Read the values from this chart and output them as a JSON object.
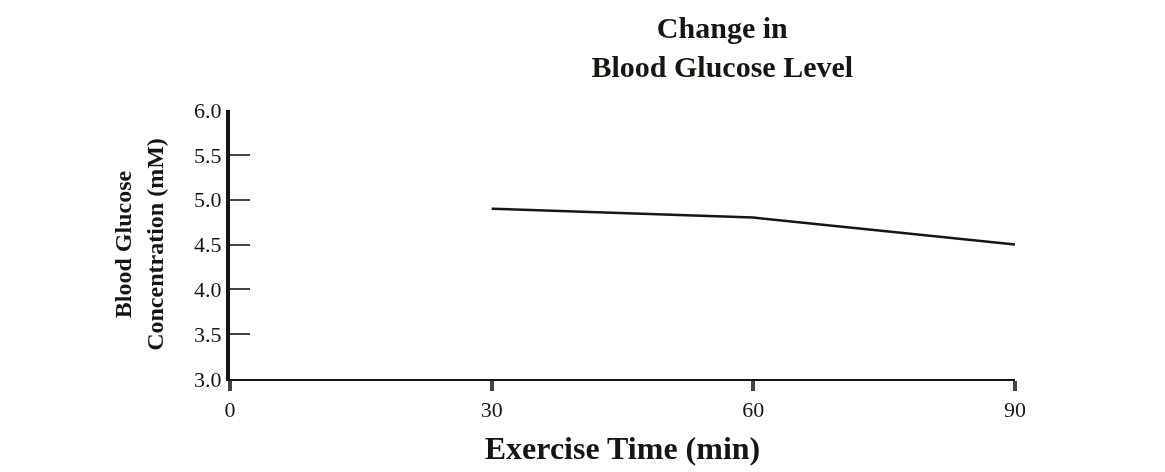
{
  "chart_data": {
    "type": "line",
    "title": "Change in\nBlood Glucose Level",
    "xlabel": "Exercise Time (min)",
    "ylabel": "Blood Glucose\nConcentration (mM)",
    "x": [
      30,
      60,
      90
    ],
    "series": [
      {
        "color": "#1a1410",
        "values": [
          4.9,
          4.8,
          4.5
        ]
      }
    ],
    "xlim": [
      0,
      90
    ],
    "xticks": [
      0,
      30,
      60,
      90
    ],
    "ylim": [
      3.0,
      6.0
    ],
    "yticks": [
      {
        "value": 3.0,
        "label": "3.0"
      },
      {
        "value": 3.5,
        "label": "3.5"
      },
      {
        "value": 4.0,
        "label": "4.0"
      },
      {
        "value": 4.5,
        "label": "4.5"
      },
      {
        "value": 5.0,
        "label": "5.0"
      },
      {
        "value": 5.5,
        "label": "5.5"
      },
      {
        "value": 6.0,
        "label": "6.0"
      }
    ],
    "marker": "none",
    "line_style": "solid"
  }
}
